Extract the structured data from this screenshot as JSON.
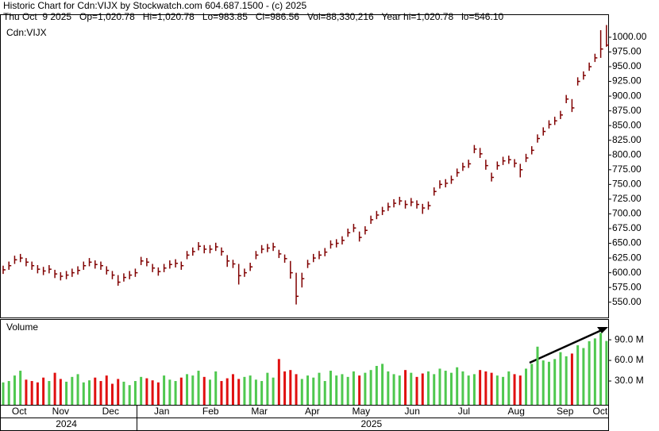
{
  "header": {
    "line1": "Historic Chart for Cdn:VIJX by Stockwatch.com 604.687.1500 - (c) 2025",
    "line2": "Thu Oct  9 2025   Op=1,020.78   Hi=1,020.78   Lo=983.85   Cl=986.56   Vol=88,330,216   Year hi=1,020.78   lo=546.10"
  },
  "chart_data": [
    {
      "type": "ohlc",
      "label": "Cdn:VIJX",
      "color": "#800000",
      "xlim": [
        -0.55,
        105.3
      ],
      "ylim": [
        524,
        1039
      ],
      "yticks": [
        {
          "value": 550,
          "label": "550.00"
        },
        {
          "value": 575,
          "label": "575.00"
        },
        {
          "value": 600,
          "label": "600.00"
        },
        {
          "value": 625,
          "label": "625.00"
        },
        {
          "value": 650,
          "label": "650.00"
        },
        {
          "value": 675,
          "label": "675.00"
        },
        {
          "value": 700,
          "label": "700.00"
        },
        {
          "value": 725,
          "label": "725.00"
        },
        {
          "value": 750,
          "label": "750.00"
        },
        {
          "value": 775,
          "label": "775.00"
        },
        {
          "value": 800,
          "label": "800.00"
        },
        {
          "value": 825,
          "label": "825.00"
        },
        {
          "value": 850,
          "label": "850.00"
        },
        {
          "value": 875,
          "label": "875.00"
        },
        {
          "value": 900,
          "label": "900.00"
        },
        {
          "value": 925,
          "label": "925.00"
        },
        {
          "value": 950,
          "label": "950.00"
        },
        {
          "value": 975,
          "label": "975.00"
        },
        {
          "value": 1000,
          "label": "1000.00"
        }
      ],
      "high": [
        612,
        619,
        629,
        632,
        625,
        619,
        613,
        610,
        613,
        605,
        601,
        603,
        607,
        611,
        619,
        625,
        621,
        619,
        611,
        603,
        596,
        599,
        603,
        607,
        627,
        625,
        615,
        609,
        615,
        621,
        623,
        619,
        637,
        643,
        652,
        647,
        647,
        651,
        643,
        630,
        622,
        615,
        607,
        617,
        637,
        647,
        649,
        651,
        639,
        631,
        620,
        600,
        600,
        622,
        632,
        637,
        642,
        655,
        657,
        662,
        675,
        683,
        670,
        679,
        697,
        705,
        712,
        719,
        725,
        729,
        723,
        727,
        723,
        717,
        721,
        745,
        757,
        759,
        765,
        777,
        787,
        792,
        817,
        812,
        792,
        770,
        789,
        797,
        799,
        793,
        785,
        802,
        815,
        835,
        847,
        859,
        865,
        875,
        902,
        895,
        932,
        942,
        957,
        972,
        1012,
        1020.78
      ],
      "low": [
        598,
        605,
        615,
        618,
        611,
        605,
        599,
        596,
        599,
        591,
        587,
        589,
        593,
        597,
        605,
        611,
        607,
        605,
        597,
        589,
        578,
        585,
        589,
        593,
        613,
        611,
        601,
        595,
        601,
        607,
        609,
        605,
        623,
        629,
        638,
        633,
        633,
        637,
        629,
        610,
        608,
        580,
        593,
        603,
        623,
        633,
        635,
        637,
        625,
        617,
        590,
        546.1,
        575,
        608,
        618,
        623,
        628,
        641,
        643,
        648,
        661,
        669,
        653,
        665,
        683,
        691,
        698,
        705,
        711,
        715,
        709,
        713,
        709,
        700,
        707,
        731,
        743,
        745,
        751,
        763,
        773,
        778,
        803,
        795,
        775,
        755,
        775,
        783,
        785,
        779,
        762,
        788,
        801,
        821,
        833,
        845,
        851,
        861,
        888,
        873,
        918,
        928,
        943,
        958,
        965,
        983.85
      ],
      "close": [
        605,
        612,
        622,
        625,
        618,
        612,
        606,
        603,
        606,
        598,
        594,
        596,
        600,
        604,
        612,
        618,
        614,
        612,
        604,
        596,
        584,
        592,
        596,
        600,
        620,
        618,
        608,
        602,
        608,
        614,
        616,
        612,
        630,
        636,
        645,
        640,
        640,
        644,
        636,
        620,
        615,
        595,
        600,
        610,
        630,
        640,
        642,
        644,
        632,
        624,
        600,
        560,
        590,
        615,
        625,
        630,
        635,
        648,
        650,
        655,
        668,
        676,
        660,
        672,
        690,
        698,
        705,
        712,
        718,
        722,
        716,
        720,
        716,
        710,
        714,
        738,
        750,
        752,
        758,
        770,
        780,
        785,
        810,
        802,
        782,
        762,
        782,
        790,
        792,
        786,
        775,
        795,
        808,
        828,
        840,
        852,
        858,
        868,
        895,
        880,
        925,
        935,
        950,
        965,
        980,
        986.56
      ]
    },
    {
      "type": "volume",
      "label": "Volume",
      "up_color": "#4fc84f",
      "down_color": "#e01010",
      "xlim": [
        -0.55,
        105.3
      ],
      "ylim": [
        0,
        119
      ],
      "yticks": [
        {
          "value": 30,
          "label": "30.0 M"
        },
        {
          "value": 60,
          "label": "60.0 M"
        },
        {
          "value": 90,
          "label": "90.0 M"
        }
      ],
      "values": [
        28,
        30,
        38,
        45,
        32,
        30,
        28,
        35,
        30,
        42,
        33,
        29,
        36,
        40,
        28,
        31,
        35,
        30,
        38,
        26,
        33,
        29,
        24,
        30,
        36,
        34,
        31,
        28,
        38,
        32,
        30,
        35,
        40,
        38,
        45,
        36,
        32,
        44,
        30,
        34,
        40,
        33,
        36,
        38,
        32,
        30,
        42,
        35,
        62,
        44,
        46,
        40,
        33,
        38,
        35,
        42,
        30,
        45,
        38,
        40,
        36,
        44,
        38,
        42,
        46,
        52,
        55,
        44,
        40,
        38,
        46,
        42,
        36,
        41,
        44,
        40,
        48,
        45,
        42,
        50,
        44,
        38,
        40,
        46,
        44,
        42,
        38,
        36,
        44,
        40,
        38,
        48,
        55,
        80,
        60,
        58,
        62,
        72,
        66,
        70,
        82,
        78,
        88,
        92,
        100,
        88.33
      ],
      "xticks": [
        {
          "value": 2.8,
          "label": "Oct"
        },
        {
          "value": 10,
          "label": "Nov"
        },
        {
          "value": 18.7,
          "label": "Dec"
        },
        {
          "value": 27.6,
          "label": "Jan"
        },
        {
          "value": 36.1,
          "label": "Feb"
        },
        {
          "value": 44.6,
          "label": "Mar"
        },
        {
          "value": 53.8,
          "label": "Apr"
        },
        {
          "value": 62.3,
          "label": "May"
        },
        {
          "value": 71.2,
          "label": "Jun"
        },
        {
          "value": 80.2,
          "label": "Jul"
        },
        {
          "value": 89.3,
          "label": "Aug"
        },
        {
          "value": 97.8,
          "label": "Sep"
        },
        {
          "value": 103.9,
          "label": "Oct"
        }
      ],
      "years": [
        {
          "value": 11,
          "label": "2024"
        },
        {
          "value": 64.1,
          "label": "2025"
        }
      ]
    }
  ]
}
